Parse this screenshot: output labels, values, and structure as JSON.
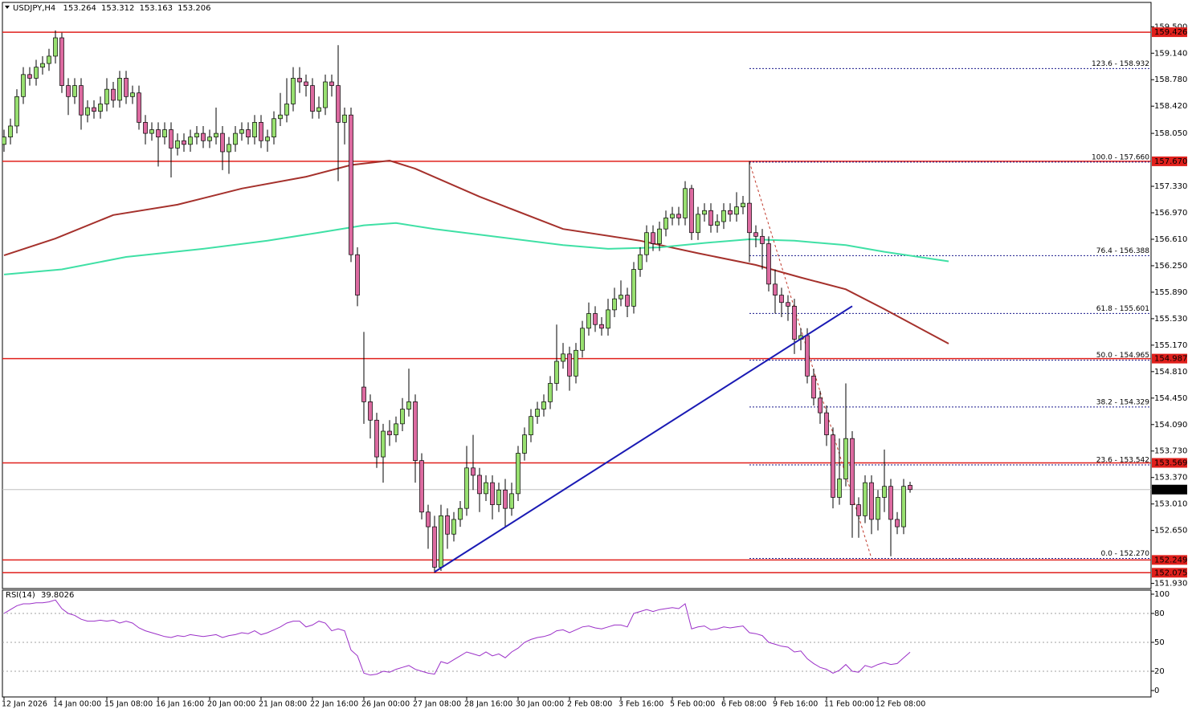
{
  "chart_data": {
    "type": "candlestick",
    "symbol": "USDJPY,H4",
    "header_values": [
      153.264,
      153.312,
      153.163,
      153.206
    ],
    "ylim": [
      151.86,
      159.82
    ],
    "yticks": [
      {
        "value": 159.5,
        "label": "159.500"
      },
      {
        "value": 159.14,
        "label": "159.140"
      },
      {
        "value": 158.78,
        "label": "158.780"
      },
      {
        "value": 158.42,
        "label": "158.420"
      },
      {
        "value": 158.05,
        "label": "158.050"
      },
      {
        "value": 157.33,
        "label": "157.330"
      },
      {
        "value": 156.97,
        "label": "156.970"
      },
      {
        "value": 156.61,
        "label": "156.610"
      },
      {
        "value": 156.25,
        "label": "156.250"
      },
      {
        "value": 155.89,
        "label": "155.890"
      },
      {
        "value": 155.53,
        "label": "155.530"
      },
      {
        "value": 155.17,
        "label": "155.170"
      },
      {
        "value": 154.81,
        "label": "154.810"
      },
      {
        "value": 154.45,
        "label": "154.450"
      },
      {
        "value": 154.09,
        "label": "154.090"
      },
      {
        "value": 153.73,
        "label": "153.730"
      },
      {
        "value": 153.37,
        "label": "153.370"
      },
      {
        "value": 153.01,
        "label": "153.010"
      },
      {
        "value": 152.65,
        "label": "152.650"
      },
      {
        "value": 151.93,
        "label": "151.930"
      }
    ],
    "xticks": [
      {
        "value": 0,
        "label": "12 Jan 2026"
      },
      {
        "value": 8,
        "label": "14 Jan 00:00"
      },
      {
        "value": 16,
        "label": "15 Jan 08:00"
      },
      {
        "value": 24,
        "label": "16 Jan 16:00"
      },
      {
        "value": 32,
        "label": "20 Jan 00:00"
      },
      {
        "value": 40,
        "label": "21 Jan 08:00"
      },
      {
        "value": 48,
        "label": "22 Jan 16:00"
      },
      {
        "value": 56,
        "label": "26 Jan 00:00"
      },
      {
        "value": 64,
        "label": "27 Jan 08:00"
      },
      {
        "value": 72,
        "label": "28 Jan 16:00"
      },
      {
        "value": 80,
        "label": "30 Jan 00:00"
      },
      {
        "value": 88,
        "label": "2 Feb 08:00"
      },
      {
        "value": 96,
        "label": "3 Feb 16:00"
      },
      {
        "value": 104,
        "label": "5 Feb 00:00"
      },
      {
        "value": 112,
        "label": "6 Feb 08:00"
      },
      {
        "value": 120,
        "label": "9 Feb 16:00"
      },
      {
        "value": 128,
        "label": "11 Feb 00:00"
      },
      {
        "value": 136,
        "label": "12 Feb 08:00"
      }
    ],
    "bull_color": "#98e070",
    "bear_color": "#dc6aa0",
    "candles": {
      "open": [
        157.9,
        158.0,
        158.15,
        158.55,
        158.85,
        158.8,
        158.95,
        159.0,
        159.1,
        159.35,
        158.7,
        158.55,
        158.7,
        158.3,
        158.4,
        158.35,
        158.45,
        158.65,
        158.5,
        158.8,
        158.55,
        158.6,
        158.2,
        158.05,
        158.1,
        158.0,
        158.1,
        157.85,
        157.95,
        157.9,
        158.0,
        158.05,
        157.95,
        158.0,
        158.05,
        157.8,
        157.9,
        158.05,
        158.1,
        158.0,
        158.2,
        157.95,
        158.0,
        158.25,
        158.3,
        158.45,
        158.8,
        158.75,
        158.7,
        158.35,
        158.4,
        158.75,
        158.7,
        158.2,
        158.3,
        156.4,
        154.6,
        154.4,
        154.15,
        153.65,
        154.0,
        153.95,
        154.1,
        154.3,
        154.4,
        153.6,
        152.9,
        152.7,
        152.15,
        152.85,
        152.6,
        152.8,
        152.95,
        153.5,
        153.4,
        153.15,
        153.3,
        153.0,
        153.2,
        152.95,
        153.15,
        153.7,
        153.95,
        154.2,
        154.3,
        154.4,
        154.65,
        154.95,
        155.05,
        154.75,
        155.1,
        155.4,
        155.6,
        155.45,
        155.4,
        155.65,
        155.8,
        155.85,
        155.7,
        156.2,
        156.4,
        156.7,
        156.55,
        156.75,
        156.9,
        156.95,
        156.9,
        157.3,
        156.7,
        156.95,
        157.0,
        156.8,
        156.85,
        157.0,
        156.95,
        157.05,
        157.1,
        156.7,
        156.65,
        156.55,
        156.0,
        155.85,
        155.75,
        155.7,
        155.25,
        155.3,
        154.75,
        154.45,
        154.25,
        153.95,
        153.1,
        153.35,
        153.9,
        153.0,
        152.85,
        153.3,
        152.8,
        153.1,
        153.25,
        152.8,
        152.7,
        153.264
      ],
      "high": [
        158.1,
        158.25,
        158.65,
        158.95,
        158.95,
        159.05,
        159.1,
        159.2,
        159.45,
        159.42,
        158.8,
        158.8,
        158.8,
        158.5,
        158.5,
        158.55,
        158.8,
        158.75,
        158.9,
        158.9,
        158.7,
        158.7,
        158.3,
        158.2,
        158.2,
        158.2,
        158.2,
        158.05,
        158.05,
        158.1,
        158.15,
        158.15,
        158.1,
        158.4,
        158.15,
        158.0,
        158.15,
        158.2,
        158.2,
        158.3,
        158.3,
        158.1,
        158.35,
        158.6,
        158.8,
        158.95,
        158.95,
        158.85,
        158.8,
        158.55,
        158.85,
        158.85,
        159.25,
        158.4,
        158.4,
        156.5,
        155.35,
        154.5,
        154.25,
        154.1,
        154.15,
        154.2,
        154.45,
        154.85,
        154.5,
        153.7,
        153.0,
        152.85,
        153.0,
        152.95,
        152.9,
        153.05,
        153.8,
        153.95,
        153.5,
        153.4,
        153.4,
        153.3,
        153.35,
        153.3,
        153.8,
        154.05,
        154.3,
        154.4,
        154.5,
        154.75,
        155.45,
        155.2,
        155.15,
        155.2,
        155.5,
        155.75,
        155.7,
        155.55,
        155.8,
        155.95,
        156.05,
        155.95,
        156.3,
        156.5,
        156.8,
        156.8,
        156.85,
        157.0,
        157.05,
        157.05,
        157.4,
        157.35,
        157.05,
        157.1,
        157.1,
        156.95,
        157.1,
        157.1,
        157.25,
        157.2,
        157.67,
        156.8,
        156.75,
        156.65,
        156.2,
        155.95,
        155.85,
        155.8,
        155.4,
        155.4,
        154.85,
        154.55,
        154.35,
        154.05,
        153.9,
        154.65,
        154.0,
        153.1,
        153.4,
        153.4,
        153.2,
        153.75,
        153.35,
        152.9,
        153.35,
        153.312
      ],
      "low": [
        157.8,
        157.9,
        158.05,
        158.45,
        158.7,
        158.7,
        158.85,
        158.9,
        159.0,
        158.6,
        158.3,
        158.45,
        158.1,
        158.2,
        158.25,
        158.25,
        158.35,
        158.4,
        158.4,
        158.45,
        158.45,
        158.1,
        157.9,
        157.95,
        157.6,
        157.9,
        157.45,
        157.75,
        157.8,
        157.8,
        157.9,
        157.85,
        157.85,
        157.9,
        157.55,
        157.5,
        157.8,
        157.95,
        157.9,
        157.9,
        157.85,
        157.8,
        157.9,
        158.15,
        158.2,
        158.35,
        158.6,
        158.55,
        158.25,
        158.25,
        158.3,
        158.55,
        157.4,
        157.9,
        156.3,
        155.7,
        154.1,
        153.9,
        153.5,
        153.3,
        153.8,
        153.85,
        154.0,
        154.2,
        153.3,
        152.8,
        152.4,
        152.075,
        152.1,
        152.4,
        152.5,
        152.7,
        152.85,
        153.2,
        152.9,
        153.05,
        152.8,
        152.9,
        152.7,
        152.85,
        153.05,
        153.6,
        153.85,
        154.1,
        154.2,
        154.3,
        154.55,
        154.85,
        154.55,
        154.65,
        155.0,
        155.3,
        155.35,
        155.3,
        155.3,
        155.55,
        155.7,
        155.55,
        155.6,
        156.1,
        156.3,
        156.45,
        156.45,
        156.65,
        156.8,
        156.8,
        156.8,
        156.6,
        156.6,
        156.85,
        156.7,
        156.7,
        156.75,
        156.85,
        156.85,
        156.95,
        156.3,
        156.5,
        156.2,
        155.9,
        155.6,
        155.55,
        155.5,
        155.05,
        155.1,
        154.65,
        154.35,
        154.1,
        153.8,
        152.95,
        153.0,
        153.25,
        152.55,
        152.55,
        152.75,
        152.6,
        152.65,
        152.9,
        152.3,
        152.6,
        152.6,
        153.163
      ],
      "close": [
        158.0,
        158.15,
        158.55,
        158.85,
        158.8,
        158.95,
        159.0,
        159.1,
        159.35,
        158.7,
        158.55,
        158.7,
        158.3,
        158.4,
        158.35,
        158.45,
        158.65,
        158.5,
        158.8,
        158.55,
        158.6,
        158.2,
        158.05,
        158.1,
        158.0,
        158.1,
        157.85,
        157.95,
        157.9,
        158.0,
        158.05,
        157.95,
        158.0,
        158.05,
        157.8,
        157.9,
        158.05,
        158.1,
        158.0,
        158.2,
        157.95,
        158.0,
        158.25,
        158.3,
        158.45,
        158.8,
        158.75,
        158.7,
        158.35,
        158.4,
        158.75,
        158.7,
        158.2,
        158.3,
        156.4,
        155.85,
        154.4,
        154.15,
        153.65,
        154.0,
        153.95,
        154.1,
        154.3,
        154.4,
        153.6,
        152.9,
        152.7,
        152.15,
        152.85,
        152.6,
        152.8,
        152.95,
        153.5,
        153.4,
        153.15,
        153.3,
        153.0,
        153.2,
        152.95,
        153.15,
        153.7,
        153.95,
        154.2,
        154.3,
        154.4,
        154.65,
        154.95,
        155.05,
        154.75,
        155.1,
        155.4,
        155.6,
        155.45,
        155.4,
        155.65,
        155.8,
        155.85,
        155.7,
        156.2,
        156.4,
        156.7,
        156.55,
        156.75,
        156.9,
        156.95,
        156.9,
        157.3,
        156.7,
        156.95,
        157.0,
        156.8,
        156.85,
        157.0,
        156.95,
        157.05,
        157.1,
        156.7,
        156.65,
        156.55,
        156.0,
        155.85,
        155.75,
        155.7,
        155.25,
        155.3,
        154.75,
        154.45,
        154.25,
        153.95,
        153.1,
        153.35,
        153.9,
        153.0,
        152.85,
        153.3,
        152.8,
        153.1,
        153.25,
        152.8,
        152.7,
        153.25,
        153.206
      ]
    },
    "ma_red": {
      "color": "#a5312c",
      "index": [
        0,
        8,
        17,
        27,
        37,
        47,
        54,
        60,
        64,
        74,
        87,
        99,
        108,
        117,
        124,
        131,
        137,
        147
      ],
      "values": [
        156.39,
        156.62,
        156.94,
        157.08,
        157.3,
        157.46,
        157.62,
        157.68,
        157.57,
        157.19,
        156.75,
        156.59,
        156.42,
        156.26,
        156.09,
        155.93,
        155.66,
        155.19
      ]
    },
    "ma_green": {
      "color": "#3fe0a5",
      "index": [
        0,
        9,
        19,
        31,
        41,
        49,
        56,
        61,
        67,
        77,
        87,
        94,
        102,
        109,
        116,
        123,
        131,
        137,
        147
      ],
      "values": [
        156.13,
        156.2,
        156.37,
        156.48,
        156.59,
        156.7,
        156.8,
        156.83,
        156.75,
        156.64,
        156.53,
        156.48,
        156.5,
        156.56,
        156.61,
        156.59,
        156.53,
        156.44,
        156.31
      ]
    },
    "trendline": {
      "color": "#1a1ab4",
      "index": [
        67,
        132
      ],
      "values": [
        152.085,
        155.7
      ]
    },
    "fib_swing": {
      "color": "#c0392b",
      "index": [
        116,
        135
      ],
      "values": [
        157.66,
        152.27
      ]
    },
    "fib_start": 116,
    "fib_color": "#1a1a8c",
    "fib_levels": [
      {
        "value": 158.932,
        "label": "123.6 - 158.932"
      },
      {
        "value": 157.66,
        "label": "100.0 - 157.660"
      },
      {
        "value": 156.388,
        "label": "76.4 - 156.388"
      },
      {
        "value": 155.601,
        "label": "61.8 - 155.601"
      },
      {
        "value": 154.965,
        "label": "50.0 - 154.965"
      },
      {
        "value": 154.329,
        "label": "38.2 - 154.329"
      },
      {
        "value": 153.542,
        "label": "23.6 - 153.542"
      },
      {
        "value": 152.27,
        "label": "0.0 - 152.270"
      }
    ],
    "level_color": "#e0201c",
    "levels": [
      159.426,
      {
        "value": 157.67,
        "label": "157.670"
      },
      154.987,
      153.569,
      152.249,
      152.075
    ],
    "bid": 153.206,
    "rsi": {
      "label": "RSI(14)",
      "last": 39.8026,
      "color": "#9b30c8",
      "ylim": [
        0,
        100
      ],
      "yticks": [
        100,
        80,
        50,
        20,
        0
      ],
      "values": [
        80,
        84,
        88,
        90,
        90,
        91,
        91,
        92,
        94,
        85,
        80,
        78,
        74,
        72,
        72,
        73,
        72,
        73,
        70,
        72,
        70,
        65,
        62,
        60,
        58,
        56,
        55,
        57,
        56,
        58,
        57,
        56,
        57,
        58,
        55,
        57,
        58,
        60,
        59,
        62,
        58,
        60,
        63,
        66,
        70,
        72,
        72,
        66,
        68,
        72,
        70,
        62,
        64,
        62,
        42,
        36,
        18,
        16,
        17,
        20,
        19,
        22,
        24,
        26,
        22,
        20,
        18,
        17,
        30,
        28,
        32,
        36,
        40,
        38,
        36,
        40,
        36,
        38,
        34,
        40,
        44,
        50,
        53,
        55,
        56,
        58,
        62,
        63,
        60,
        63,
        66,
        67,
        65,
        64,
        66,
        68,
        68,
        66,
        80,
        82,
        84,
        82,
        84,
        85,
        86,
        85,
        90,
        64,
        66,
        67,
        63,
        64,
        66,
        65,
        66,
        67,
        60,
        59,
        57,
        50,
        48,
        46,
        45,
        40,
        41,
        33,
        28,
        24,
        22,
        18,
        21,
        27,
        20,
        19,
        26,
        24,
        27,
        29,
        27,
        28,
        34,
        39.8026
      ]
    }
  }
}
